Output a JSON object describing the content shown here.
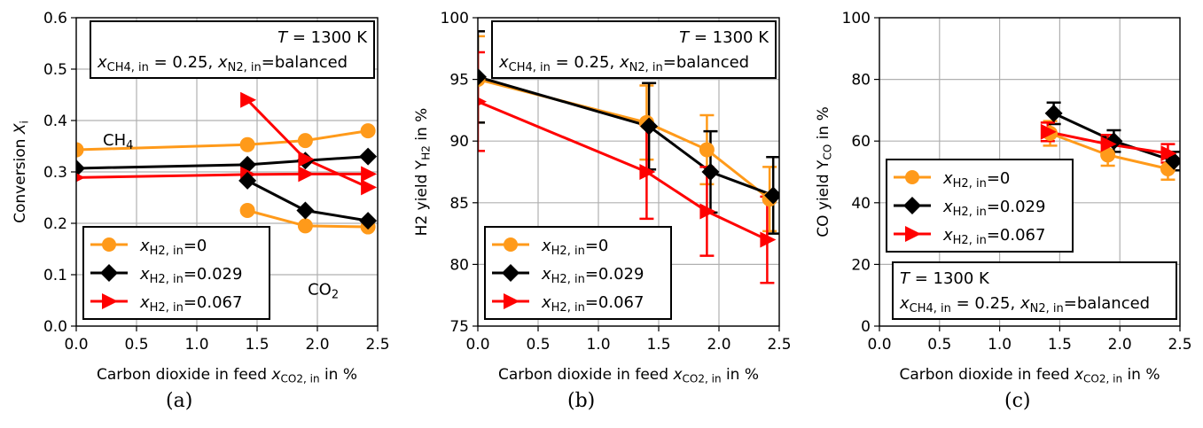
{
  "figure": {
    "panel_labels": [
      "(a)",
      "(b)",
      "(c)"
    ]
  },
  "chart_data": [
    {
      "type": "line",
      "panel": "a",
      "ylabel": "Conversion X_i",
      "xlabel": "Carbon dioxide in feed x_CO2,in in %",
      "xlim": [
        0,
        2.5
      ],
      "ylim": [
        0,
        0.6
      ],
      "xticks": [
        "0.0",
        "0.5",
        "1.0",
        "1.5",
        "2.0",
        "2.5"
      ],
      "yticks": [
        "0.0",
        "0.1",
        "0.2",
        "0.3",
        "0.4",
        "0.5",
        "0.6"
      ],
      "grid": true,
      "annotations": [
        {
          "text": "CH4",
          "anchor": "near CH4 curves"
        },
        {
          "text": "CO2",
          "anchor": "near CO2 curves"
        }
      ],
      "condition_box": {
        "line1": "T = 1300 K",
        "line2": "x_CH4,in = 0.25, x_N2,in=balanced",
        "placement": "top-right"
      },
      "legend_placement": "bottom-left",
      "series": [
        {
          "name": "x_H2,in=0",
          "color": "#ff9a1a",
          "marker": "circle",
          "group": "CH4",
          "points": [
            [
              0.0,
              0.343
            ],
            [
              1.42,
              0.353
            ],
            [
              1.9,
              0.361
            ],
            [
              2.42,
              0.38
            ]
          ]
        },
        {
          "name": "x_H2,in=0.029",
          "color": "#000000",
          "marker": "diamond",
          "group": "CH4",
          "points": [
            [
              0.0,
              0.307
            ],
            [
              1.42,
              0.314
            ],
            [
              1.9,
              0.322
            ],
            [
              2.42,
              0.33
            ]
          ]
        },
        {
          "name": "x_H2,in=0.067",
          "color": "#ff0000",
          "marker": "triangle-right",
          "group": "CH4",
          "points": [
            [
              0.0,
              0.289
            ],
            [
              1.42,
              0.295
            ],
            [
              1.9,
              0.296
            ],
            [
              2.42,
              0.296
            ]
          ]
        },
        {
          "name": "x_H2,in=0",
          "color": "#ff9a1a",
          "marker": "circle",
          "group": "CO2",
          "points": [
            [
              1.42,
              0.225
            ],
            [
              1.9,
              0.195
            ],
            [
              2.42,
              0.193
            ]
          ]
        },
        {
          "name": "x_H2,in=0.029",
          "color": "#000000",
          "marker": "diamond",
          "group": "CO2",
          "points": [
            [
              1.42,
              0.283
            ],
            [
              1.9,
              0.225
            ],
            [
              2.42,
              0.205
            ]
          ]
        },
        {
          "name": "x_H2,in=0.067",
          "color": "#ff0000",
          "marker": "triangle-right",
          "group": "CO2",
          "points": [
            [
              1.42,
              0.44
            ],
            [
              1.9,
              0.325
            ],
            [
              2.42,
              0.27
            ]
          ]
        }
      ]
    },
    {
      "type": "line",
      "panel": "b",
      "ylabel": "H2 yield Y_H2 in %",
      "xlabel": "Carbon dioxide in feed x_CO2,in in %",
      "xlim": [
        0,
        2.5
      ],
      "ylim": [
        75,
        100
      ],
      "xticks": [
        "0.0",
        "0.5",
        "1.0",
        "1.5",
        "2.0",
        "2.5"
      ],
      "yticks": [
        "75",
        "80",
        "85",
        "90",
        "95",
        "100"
      ],
      "grid": true,
      "condition_box": {
        "line1": "T = 1300 K",
        "line2": "x_CH4,in = 0.25, x_N2,in=balanced",
        "placement": "top-right"
      },
      "legend_placement": "bottom-left",
      "series": [
        {
          "name": "x_H2,in=0",
          "color": "#ff9a1a",
          "marker": "circle",
          "points": [
            [
              0.0,
              95.0
            ],
            [
              1.4,
              91.5
            ],
            [
              1.9,
              89.3
            ],
            [
              2.42,
              85.3
            ]
          ],
          "errors": [
            3.5,
            3.0,
            2.8,
            2.6
          ]
        },
        {
          "name": "x_H2,in=0.029",
          "color": "#000000",
          "marker": "diamond",
          "points": [
            [
              0.0,
              95.2
            ],
            [
              1.42,
              91.2
            ],
            [
              1.93,
              87.5
            ],
            [
              2.45,
              85.6
            ]
          ],
          "errors": [
            3.7,
            3.5,
            3.3,
            3.1
          ]
        },
        {
          "name": "x_H2,in=0.067",
          "color": "#ff0000",
          "marker": "triangle-right",
          "points": [
            [
              0.0,
              93.2
            ],
            [
              1.4,
              87.5
            ],
            [
              1.9,
              84.3
            ],
            [
              2.4,
              82.0
            ]
          ],
          "errors": [
            4.0,
            3.8,
            3.6,
            3.5
          ]
        }
      ]
    },
    {
      "type": "line",
      "panel": "c",
      "ylabel": "CO yield Y_CO in %",
      "xlabel": "Carbon dioxide in feed x_CO2,in in %",
      "xlim": [
        0,
        2.5
      ],
      "ylim": [
        0,
        100
      ],
      "xticks": [
        "0.0",
        "0.5",
        "1.0",
        "1.5",
        "2.0",
        "2.5"
      ],
      "yticks": [
        "0",
        "20",
        "40",
        "60",
        "80",
        "100"
      ],
      "grid": true,
      "condition_box": {
        "line1": "T = 1300 K",
        "line2": "x_CH4,in = 0.25, x_N2,in=balanced",
        "placement": "bottom-right"
      },
      "legend_placement": "center-left",
      "series": [
        {
          "name": "x_H2,in=0",
          "color": "#ff9a1a",
          "marker": "circle",
          "points": [
            [
              1.42,
              62.5
            ],
            [
              1.9,
              55.5
            ],
            [
              2.4,
              51.0
            ]
          ],
          "errors": [
            4.0,
            3.5,
            3.5
          ]
        },
        {
          "name": "x_H2,in=0.029",
          "color": "#000000",
          "marker": "diamond",
          "points": [
            [
              1.45,
              69.0
            ],
            [
              1.95,
              60.0
            ],
            [
              2.45,
              53.5
            ]
          ],
          "errors": [
            3.5,
            3.5,
            3.0
          ]
        },
        {
          "name": "x_H2,in=0.067",
          "color": "#ff0000",
          "marker": "triangle-right",
          "points": [
            [
              1.4,
              63.0
            ],
            [
              1.9,
              59.0
            ],
            [
              2.4,
              56.0
            ]
          ],
          "errors": [
            3.0,
            3.0,
            3.0
          ]
        }
      ]
    }
  ]
}
